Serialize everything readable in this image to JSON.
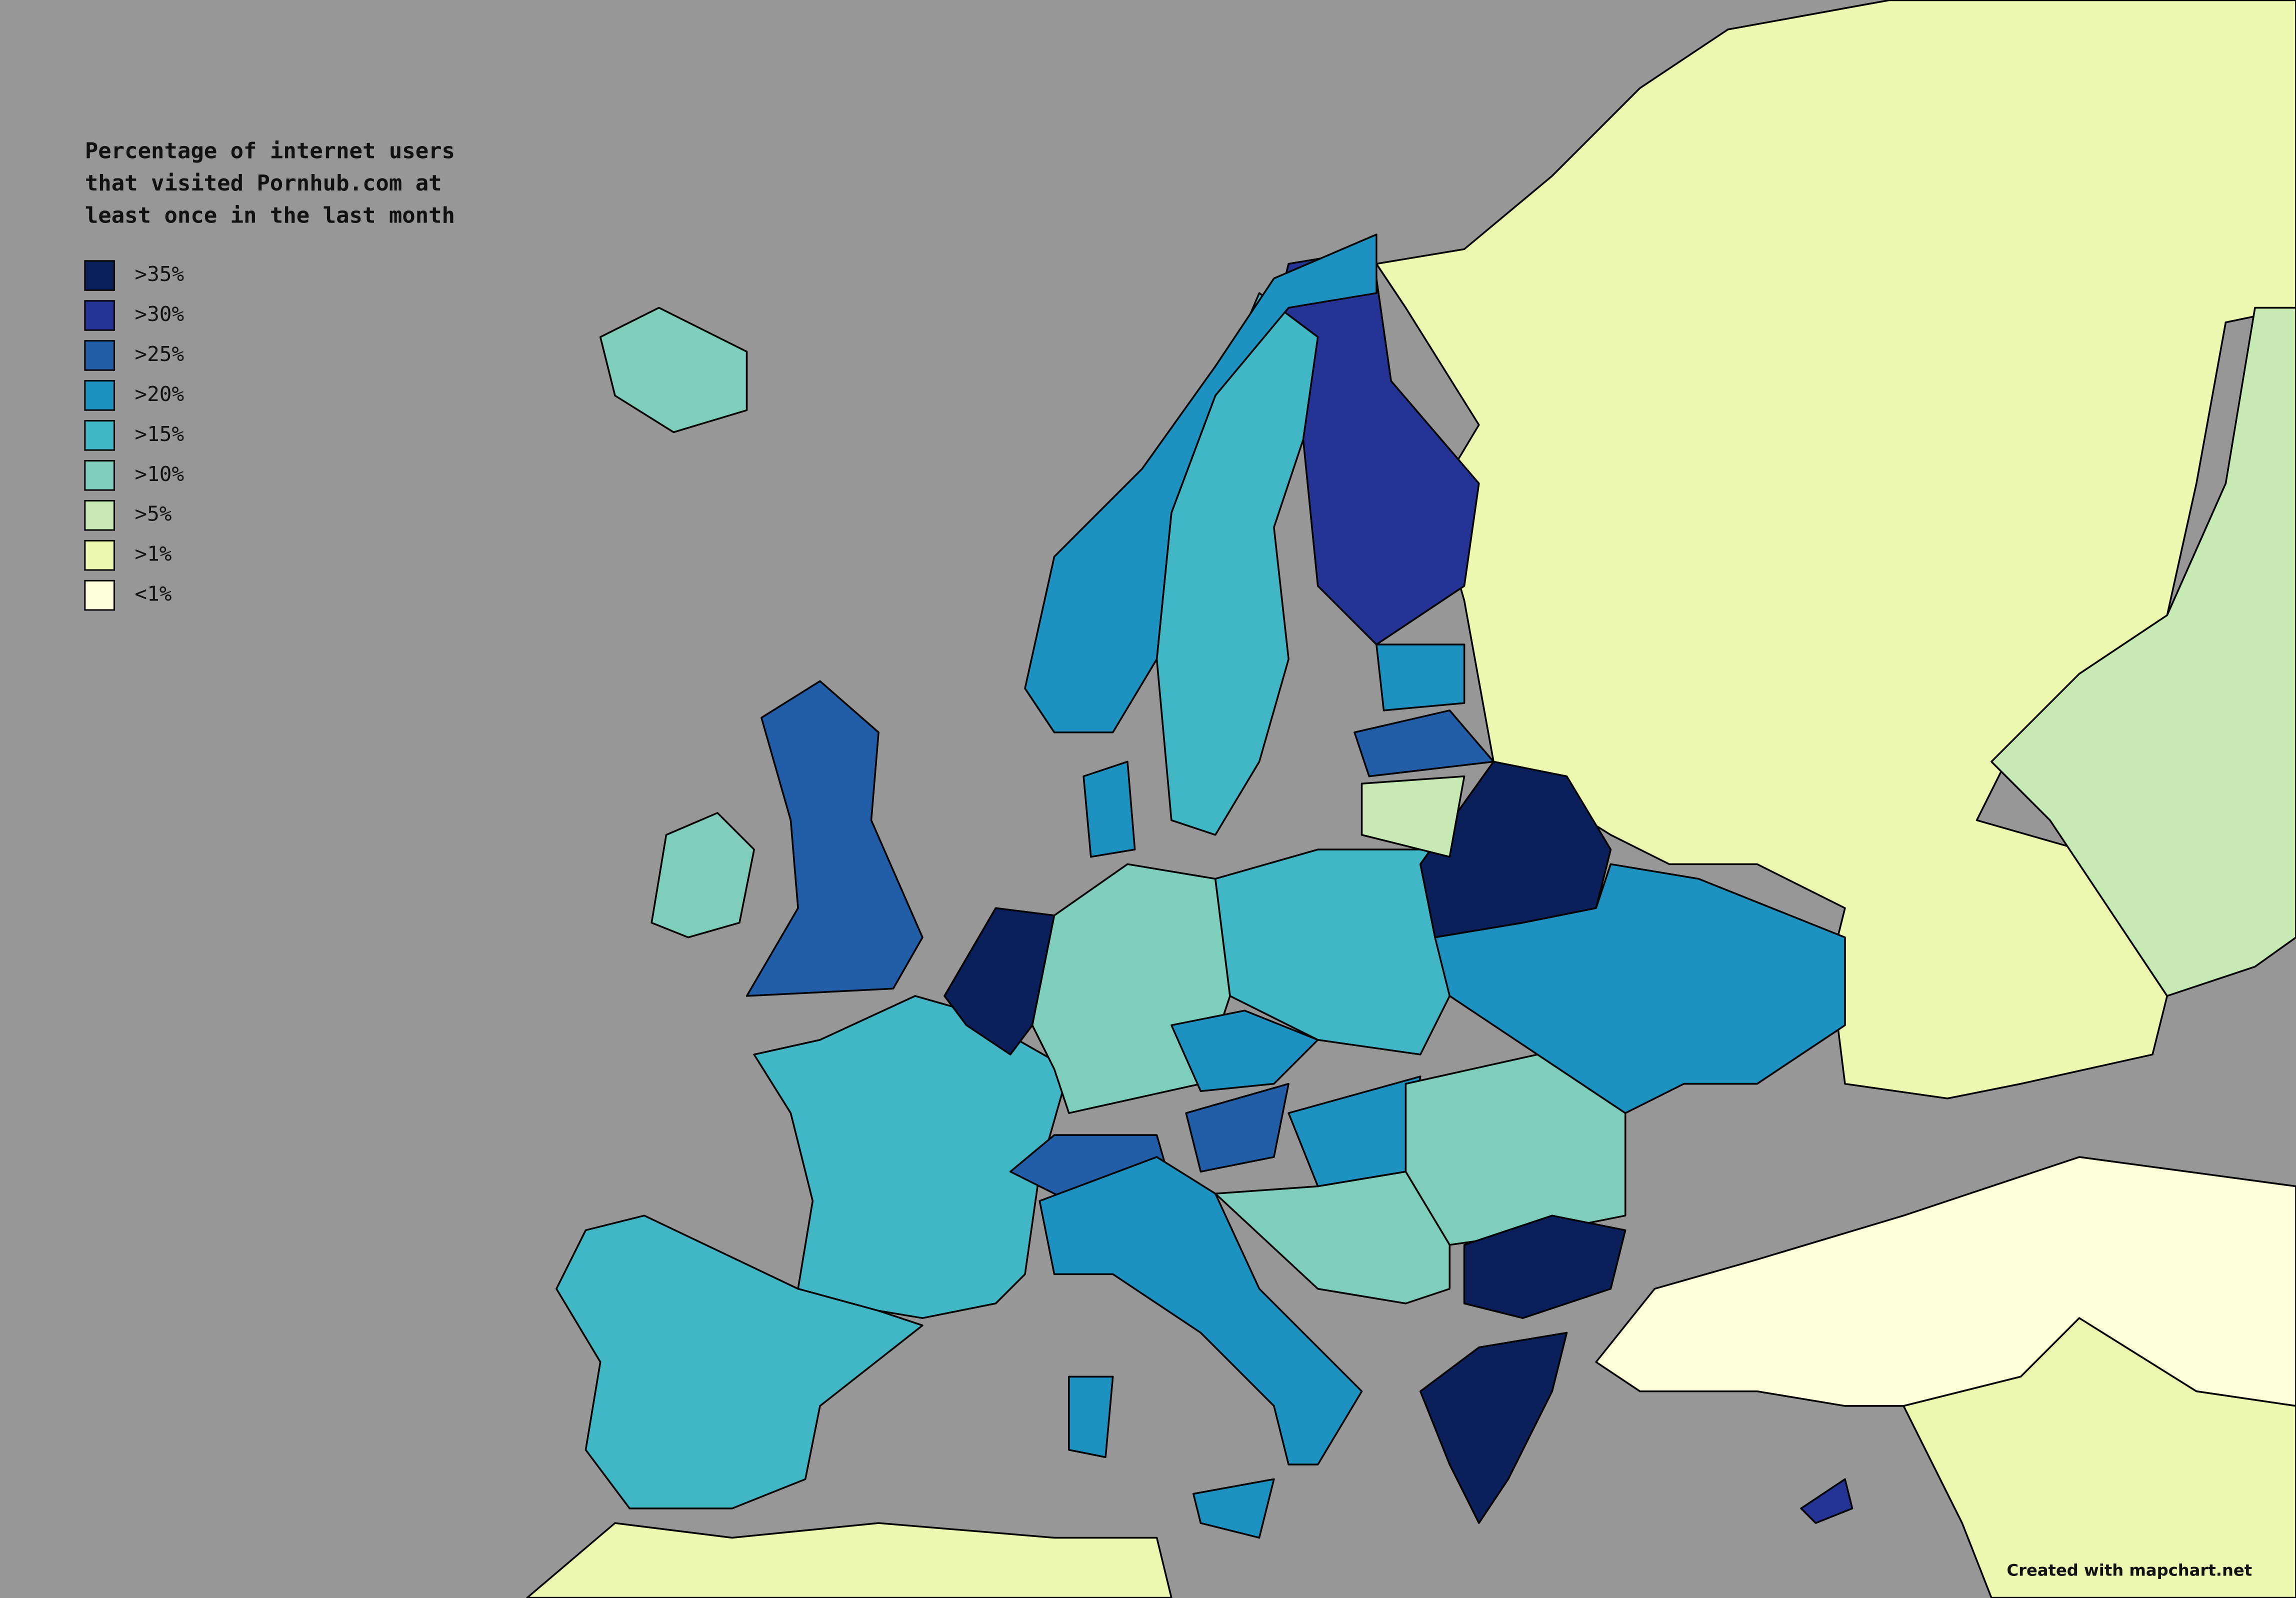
{
  "title": [
    "Percentage of internet users",
    "that visited Pornhub.com at",
    "least once in the last month"
  ],
  "legend": [
    {
      "label": ">35%",
      "color": "#0b1f5a"
    },
    {
      "label": ">30%",
      "color": "#253494"
    },
    {
      "label": ">25%",
      "color": "#225ea8"
    },
    {
      "label": ">20%",
      "color": "#1d91c0"
    },
    {
      "label": ">15%",
      "color": "#41b6c4"
    },
    {
      "label": ">10%",
      "color": "#7fcdbb"
    },
    {
      "label": ">5%",
      "color": "#c7e9b4"
    },
    {
      "label": ">1%",
      "color": "#edf8b1"
    },
    {
      "label": "<1%",
      "color": "#ffffd9"
    }
  ],
  "credit": "Created with mapchart.net"
}
